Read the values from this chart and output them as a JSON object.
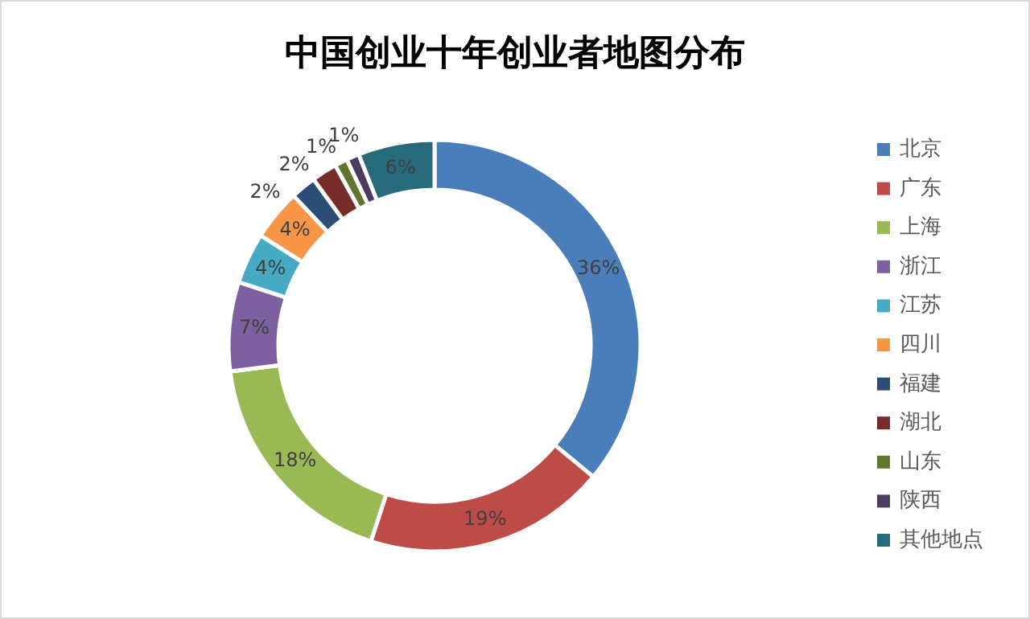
{
  "chart_data": {
    "type": "donut",
    "title": "中国创业十年创业者地图分布",
    "categories": [
      "北京",
      "广东",
      "上海",
      "浙江",
      "江苏",
      "四川",
      "福建",
      "湖北",
      "山东",
      "陕西",
      "其他地点"
    ],
    "values": [
      36,
      19,
      18,
      7,
      4,
      4,
      2,
      2,
      1,
      1,
      6
    ],
    "value_labels": [
      "36%",
      "19%",
      "18%",
      "7%",
      "4%",
      "4%",
      "2%",
      "2%",
      "1%",
      "1%",
      "6%"
    ],
    "colors": [
      "#4a7ebb",
      "#be4b48",
      "#98b954",
      "#7d60a0",
      "#46aac5",
      "#f79646",
      "#2c4d75",
      "#772c2a",
      "#5f7530",
      "#4d3b62",
      "#276a7c"
    ],
    "legend": "right"
  }
}
